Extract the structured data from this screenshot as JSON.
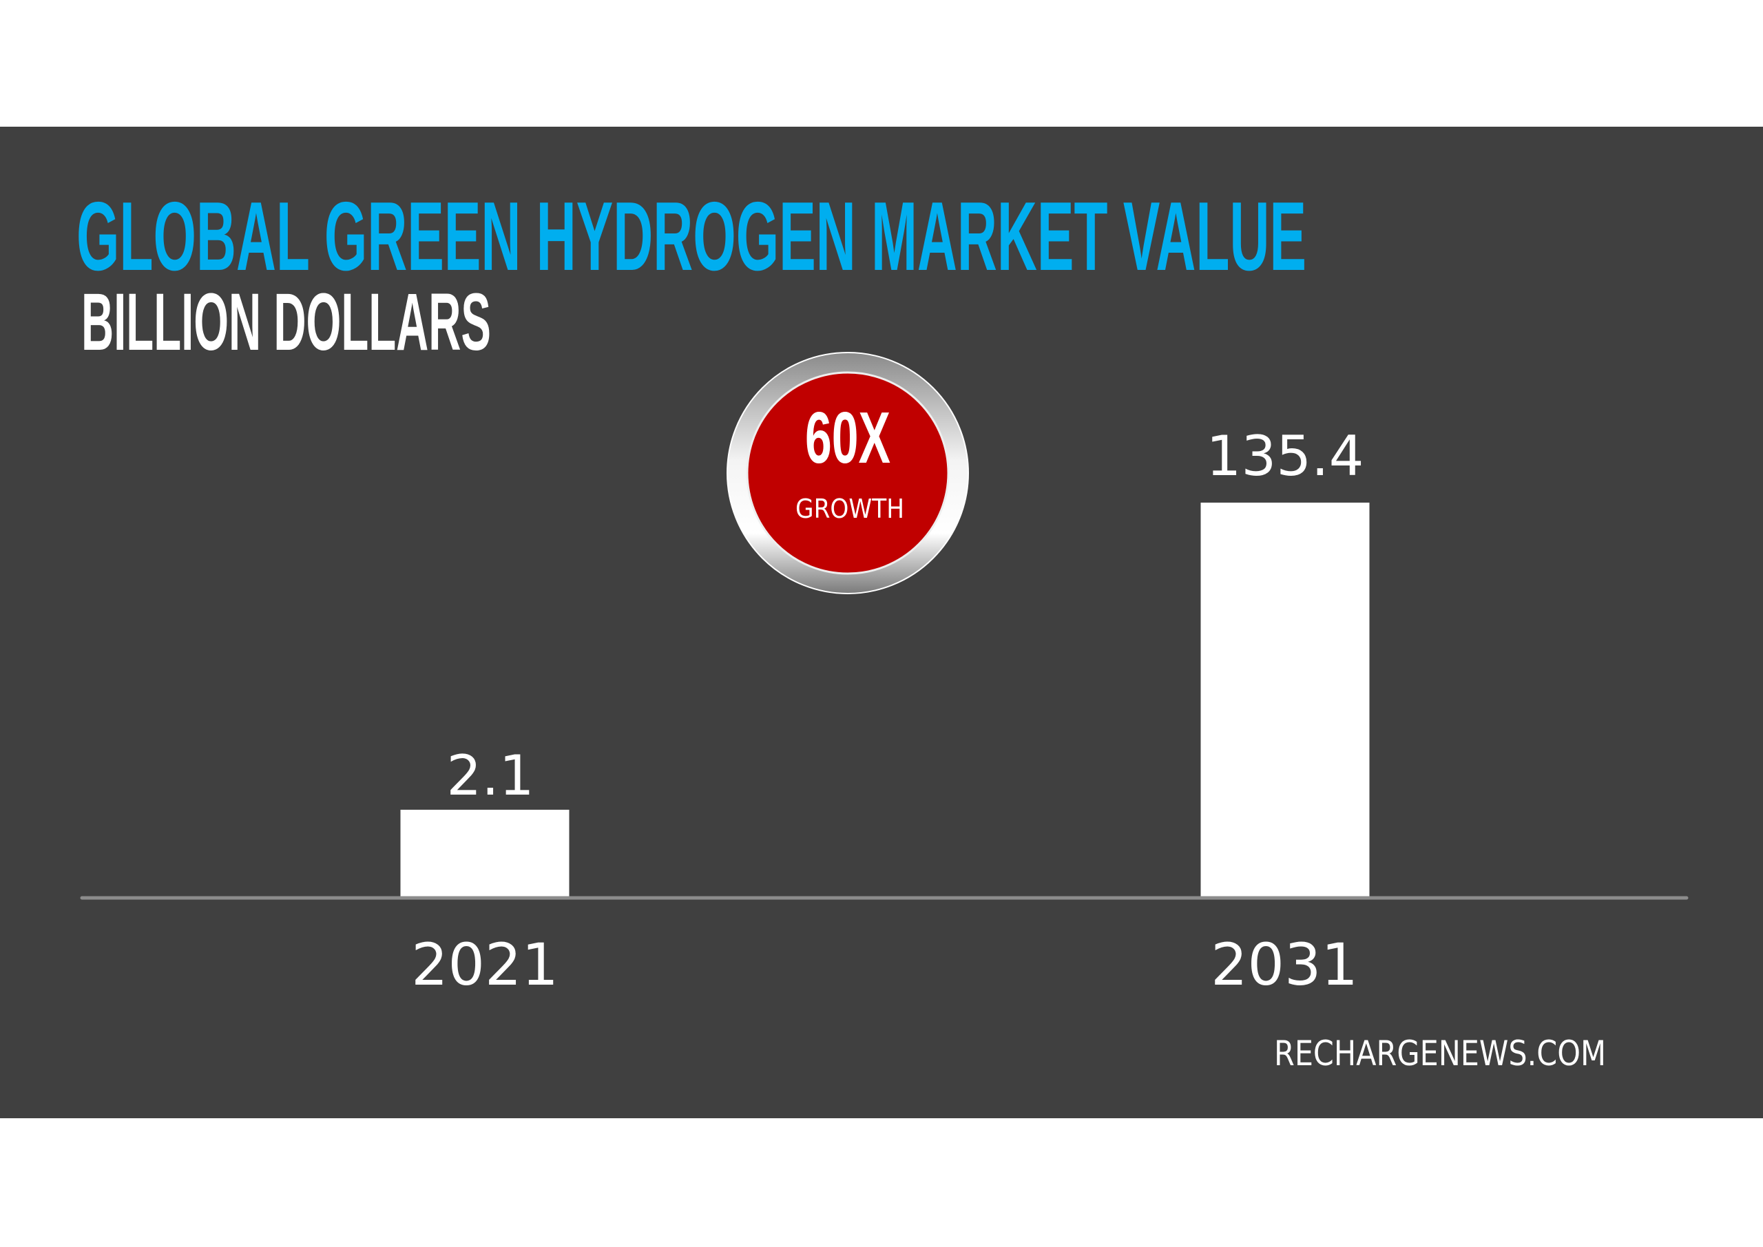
{
  "colors": {
    "background": "#404040",
    "title": "#00AEEF",
    "text": "#FFFFFF",
    "bar": "#FFFFFF",
    "badge": "#C00000",
    "axis": "#8C8C8C"
  },
  "badge": {
    "value": "60X",
    "label": "GROWTH"
  },
  "source": "RECHARGENEWS.COM",
  "chart_data": {
    "type": "bar",
    "title": "GLOBAL GREEN HYDROGEN MARKET VALUE",
    "subtitle": "BILLION DOLLARS",
    "categories": [
      "2021",
      "2031"
    ],
    "values": [
      2.1,
      135.4
    ],
    "value_labels": [
      "2.1",
      "135.4"
    ],
    "xlabel": "",
    "ylabel": "",
    "grid": false
  }
}
